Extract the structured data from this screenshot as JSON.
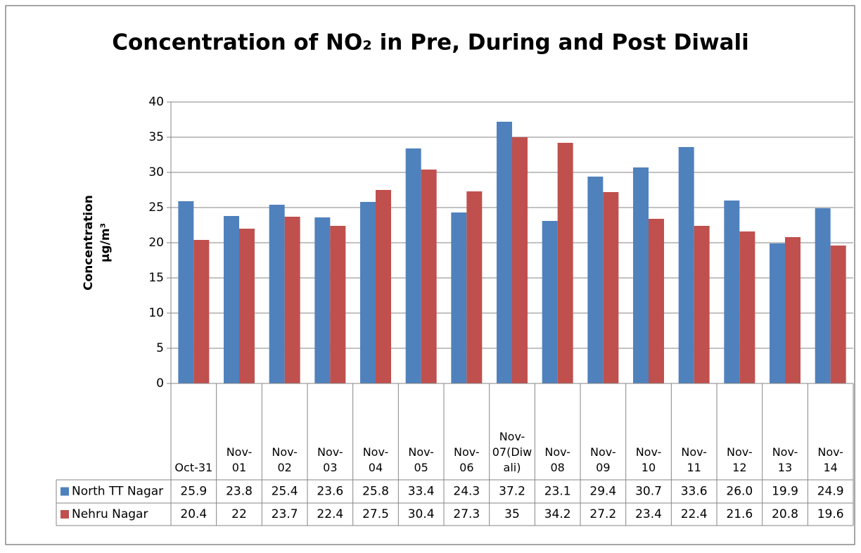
{
  "chart_data": {
    "type": "bar",
    "title": "Concentration of NO₂ in Pre, During and Post Diwali",
    "y_label": [
      "Concentration",
      "µg/m³"
    ],
    "categories": [
      "Oct-31",
      "Nov-01",
      "Nov-02",
      "Nov-03",
      "Nov-04",
      "Nov-05",
      "Nov-06",
      "Nov-07(Diwali)",
      "Nov-08",
      "Nov-09",
      "Nov-10",
      "Nov-11",
      "Nov-12",
      "Nov-13",
      "Nov-14"
    ],
    "series": [
      {
        "name": "North TT Nagar",
        "color": "#4f81bd",
        "values": [
          25.9,
          23.8,
          25.4,
          23.6,
          25.8,
          33.4,
          24.3,
          37.2,
          23.1,
          29.4,
          30.7,
          33.6,
          26.0,
          19.9,
          24.9
        ],
        "value_labels": [
          "25.9",
          "23.8",
          "25.4",
          "23.6",
          "25.8",
          "33.4",
          "24.3",
          "37.2",
          "23.1",
          "29.4",
          "30.7",
          "33.6",
          "26.0",
          "19.9",
          "24.9"
        ]
      },
      {
        "name": "Nehru Nagar",
        "color": "#c0504d",
        "values": [
          20.4,
          22,
          23.7,
          22.4,
          27.5,
          30.4,
          27.3,
          35,
          34.2,
          27.2,
          23.4,
          22.4,
          21.6,
          20.8,
          19.6
        ]
      }
    ],
    "ylim": [
      0,
      40
    ],
    "yticks": [
      0,
      5,
      10,
      15,
      20,
      25,
      30,
      35,
      40
    ],
    "grid": true
  }
}
